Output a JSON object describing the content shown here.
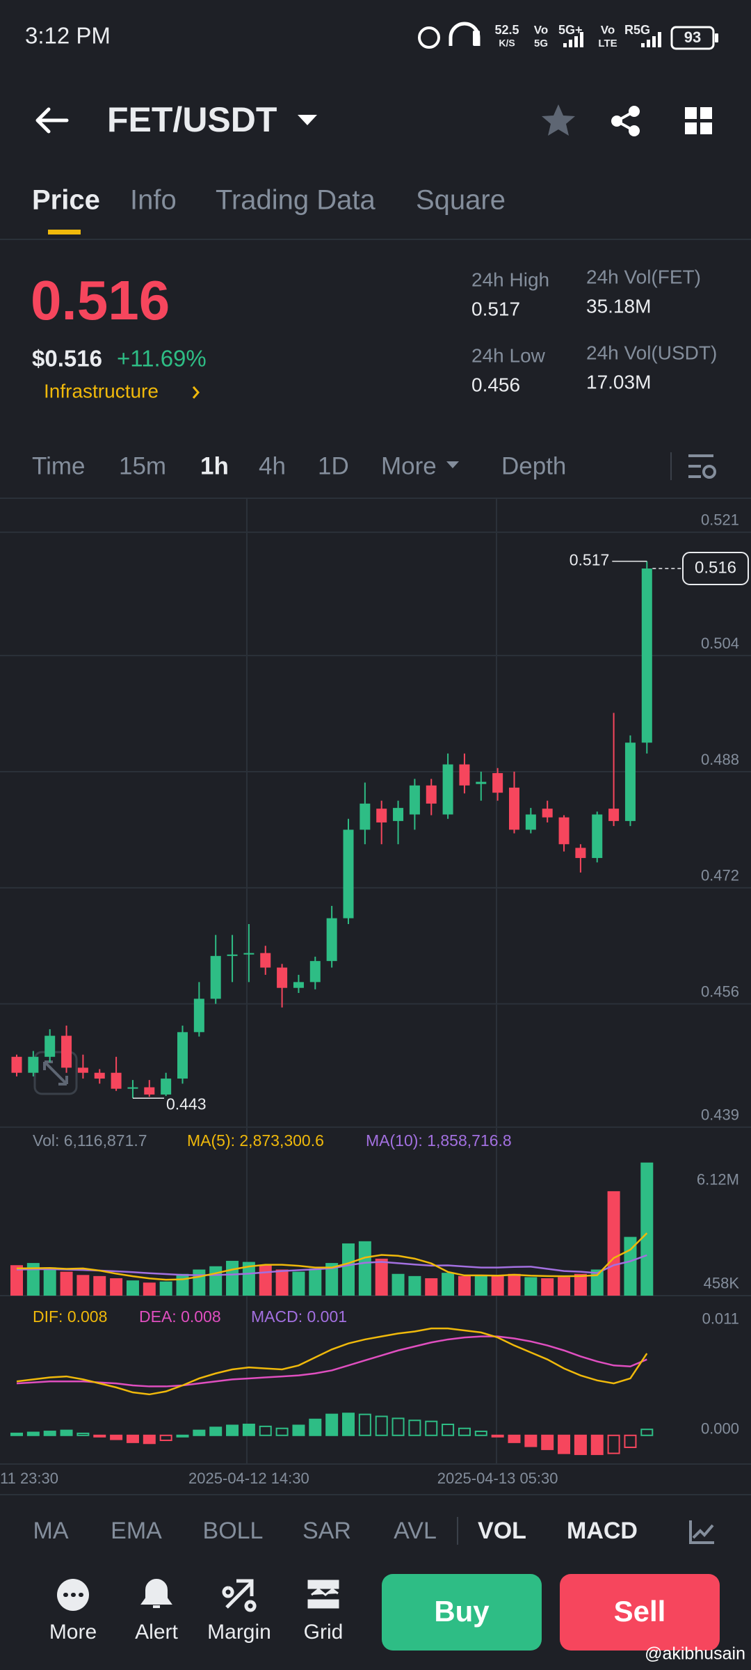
{
  "status_bar": {
    "time": "3:12 PM",
    "speed": "52.5",
    "speed_unit": "K/S",
    "sim1_top": "Vo",
    "sim1_bottom": "5G",
    "sim1_net": "5G+",
    "sim2_top": "Vo",
    "sim2_bottom": "LTE",
    "sim2_net": "R5G",
    "battery": "93"
  },
  "header": {
    "pair": "FET/USDT"
  },
  "tabs": [
    "Price",
    "Info",
    "Trading Data",
    "Square"
  ],
  "ticker": {
    "last_price": "0.516",
    "usd_price": "$0.516",
    "change": "+11.69%",
    "tag": "Infrastructure",
    "stats": [
      {
        "label": "24h High",
        "value": "0.517"
      },
      {
        "label": "24h Vol(FET)",
        "value": "35.18M"
      },
      {
        "label": "24h Low",
        "value": "0.456"
      },
      {
        "label": "24h Vol(USDT)",
        "value": "17.03M"
      }
    ]
  },
  "intervals": [
    "Time",
    "15m",
    "1h",
    "4h",
    "1D",
    "More",
    "Depth"
  ],
  "chart": {
    "type": "candlestick",
    "up_color": "#2ebd85",
    "down_color": "#f6465d",
    "open": [
      0.4487,
      0.4465,
      0.4487,
      0.4516,
      0.4472,
      0.4465,
      0.4465,
      0.4443,
      0.4445,
      0.4435,
      0.4457,
      0.4521,
      0.4567,
      0.4626,
      0.4628,
      0.463,
      0.461,
      0.4582,
      0.459,
      0.4619,
      0.4678,
      0.48,
      0.4829,
      0.4812,
      0.4821,
      0.4861,
      0.4821,
      0.489,
      0.4863,
      0.4878,
      0.4858,
      0.48,
      0.4829,
      0.4817,
      0.4775,
      0.4761,
      0.4829,
      0.4812,
      0.492
    ],
    "close": [
      0.4465,
      0.4487,
      0.4516,
      0.4472,
      0.4465,
      0.4457,
      0.4443,
      0.4445,
      0.4435,
      0.4457,
      0.4521,
      0.4567,
      0.4626,
      0.4628,
      0.463,
      0.461,
      0.4582,
      0.459,
      0.4619,
      0.4678,
      0.48,
      0.4836,
      0.481,
      0.483,
      0.4861,
      0.4836,
      0.489,
      0.4861,
      0.4866,
      0.4851,
      0.48,
      0.4821,
      0.4817,
      0.478,
      0.4761,
      0.4821,
      0.4812,
      0.492,
      0.516
    ],
    "high": [
      0.449,
      0.4495,
      0.4525,
      0.453,
      0.449,
      0.447,
      0.4487,
      0.4455,
      0.4455,
      0.4465,
      0.453,
      0.459,
      0.4655,
      0.4655,
      0.467,
      0.464,
      0.4615,
      0.46,
      0.4625,
      0.4695,
      0.4815,
      0.4865,
      0.484,
      0.484,
      0.487,
      0.487,
      0.4905,
      0.4905,
      0.488,
      0.4885,
      0.488,
      0.483,
      0.484,
      0.482,
      0.478,
      0.4825,
      0.4961,
      0.493,
      0.517
    ],
    "low": [
      0.446,
      0.446,
      0.448,
      0.4465,
      0.4457,
      0.445,
      0.444,
      0.443,
      0.4432,
      0.4433,
      0.445,
      0.4515,
      0.456,
      0.459,
      0.459,
      0.46,
      0.4555,
      0.4575,
      0.458,
      0.461,
      0.467,
      0.478,
      0.478,
      0.478,
      0.48,
      0.482,
      0.4815,
      0.485,
      0.484,
      0.484,
      0.4795,
      0.4795,
      0.481,
      0.477,
      0.4741,
      0.4755,
      0.4805,
      0.4805,
      0.4905
    ],
    "ylim": [
      0.4388,
      0.5254
    ],
    "yticks": [
      0.521,
      0.504,
      0.488,
      0.472,
      0.456,
      0.439
    ],
    "high_label": "0.517",
    "low_label": "0.443",
    "last_label": "0.516",
    "x_labels": [
      "11 23:30",
      "2025-04-12 14:30",
      "2025-04-13 05:30"
    ],
    "volume": {
      "values": [
        1400000,
        1500000,
        1300000,
        1100000,
        950000,
        900000,
        800000,
        700000,
        600000,
        650000,
        1000000,
        1200000,
        1350000,
        1600000,
        1550000,
        1400000,
        1200000,
        1100000,
        1250000,
        1500000,
        2400000,
        2500000,
        1700000,
        1000000,
        900000,
        800000,
        1050000,
        900000,
        900000,
        950000,
        1000000,
        850000,
        800000,
        850000,
        1000000,
        1200000,
        4800000,
        2700000,
        6116871.7
      ],
      "ma5": [
        1250000,
        1260000,
        1270000,
        1230000,
        1250000,
        1150000,
        1010000,
        890000,
        790000,
        730000,
        750000,
        870000,
        1030000,
        1200000,
        1340000,
        1420000,
        1420000,
        1370000,
        1290000,
        1290000,
        1490000,
        1750000,
        1870000,
        1830000,
        1700000,
        1480000,
        1090000,
        930000,
        930000,
        920000,
        960000,
        920000,
        900000,
        890000,
        900000,
        940000,
        1730000,
        2110000,
        2873300.6
      ],
      "ma10": [
        1200000,
        1210000,
        1220000,
        1200000,
        1180000,
        1150000,
        1120000,
        1080000,
        1030000,
        990000,
        950000,
        940000,
        950000,
        970000,
        1010000,
        1070000,
        1130000,
        1170000,
        1210000,
        1260000,
        1400000,
        1510000,
        1550000,
        1490000,
        1430000,
        1380000,
        1390000,
        1340000,
        1290000,
        1290000,
        1320000,
        1330000,
        1230000,
        1130000,
        1100000,
        1040000,
        1400000,
        1580000,
        1858716.8
      ],
      "ma5_color": "#f0b90b",
      "ma10_color": "#a370e0",
      "ylim": [
        0,
        6460000
      ],
      "yticks": [
        {
          "value": 6120000,
          "label": "6.12M"
        },
        {
          "value": 458000,
          "label": "458K"
        }
      ],
      "legend": [
        "Vol: 6,116,871.7",
        "MA(5): 2,873,300.6",
        "MA(10): 1,858,716.8"
      ]
    },
    "macd": {
      "dif": [
        0.0054,
        0.0056,
        0.0058,
        0.0059,
        0.0056,
        0.0052,
        0.0048,
        0.0043,
        0.0041,
        0.0044,
        0.005,
        0.0057,
        0.0062,
        0.0066,
        0.0068,
        0.0067,
        0.0066,
        0.007,
        0.0078,
        0.0086,
        0.0092,
        0.0096,
        0.0099,
        0.0102,
        0.0104,
        0.0107,
        0.0107,
        0.0105,
        0.0103,
        0.0098,
        0.009,
        0.0083,
        0.0076,
        0.0067,
        0.006,
        0.0055,
        0.0052,
        0.0057,
        0.0082
      ],
      "dea": [
        0.0052,
        0.0053,
        0.0054,
        0.0054,
        0.0054,
        0.0053,
        0.0052,
        0.005,
        0.0049,
        0.0049,
        0.005,
        0.0052,
        0.0054,
        0.0056,
        0.0057,
        0.0058,
        0.0059,
        0.006,
        0.0062,
        0.0065,
        0.007,
        0.0075,
        0.008,
        0.0085,
        0.0089,
        0.0093,
        0.0096,
        0.0098,
        0.0099,
        0.0099,
        0.0097,
        0.0094,
        0.009,
        0.0085,
        0.0079,
        0.0074,
        0.007,
        0.0069,
        0.0076
      ],
      "hist": [
        0.0002,
        0.0003,
        0.0004,
        0.0005,
        0.0002,
        -0.0001,
        -0.0004,
        -0.0007,
        -0.0008,
        -0.0005,
        0,
        0.0005,
        0.0008,
        0.001,
        0.0011,
        0.0009,
        0.0007,
        0.001,
        0.0016,
        0.0021,
        0.0022,
        0.0021,
        0.0019,
        0.0017,
        0.0015,
        0.0014,
        0.0011,
        0.0007,
        0.0004,
        -0.0001,
        -0.0007,
        -0.0011,
        -0.0014,
        -0.0018,
        -0.0019,
        -0.0019,
        -0.0018,
        -0.0012,
        0.0006
      ],
      "dif_color": "#f0b90b",
      "dea_color": "#e04fc0",
      "macd_color": "#a370e0",
      "ylim": [
        -0.0028,
        0.0128
      ],
      "yticks": [
        0.011,
        {
          "value": 0,
          "label": "0.000"
        }
      ],
      "legend": [
        "DIF: 0.008",
        "DEA: 0.008",
        "MACD: 0.001"
      ]
    }
  },
  "indicators": [
    "MA",
    "EMA",
    "BOLL",
    "SAR",
    "AVL",
    "VOL",
    "MACD"
  ],
  "bottom_bar": {
    "tools": [
      "More",
      "Alert",
      "Margin",
      "Grid"
    ],
    "buy": "Buy",
    "sell": "Sell"
  },
  "watermark": "@akibhusain"
}
